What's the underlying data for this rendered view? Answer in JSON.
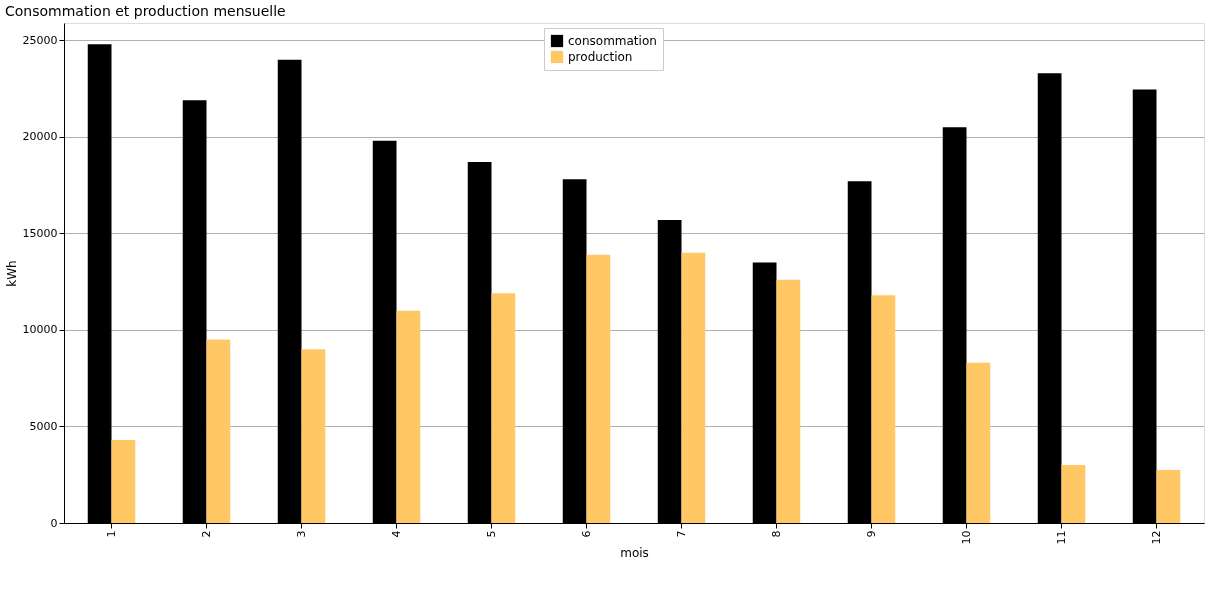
{
  "chart_data": {
    "type": "bar",
    "title": "Consommation et production mensuelle",
    "xlabel": "mois",
    "ylabel": "kWh",
    "categories": [
      "1",
      "2",
      "3",
      "4",
      "5",
      "6",
      "7",
      "8",
      "9",
      "10",
      "11",
      "12"
    ],
    "series": [
      {
        "name": "consommation",
        "color": "#000000",
        "values": [
          24800,
          21900,
          24000,
          19800,
          18700,
          17800,
          15700,
          13500,
          17700,
          20500,
          23300,
          22450
        ]
      },
      {
        "name": "production",
        "color": "#ffc864",
        "values": [
          4300,
          9500,
          9000,
          11000,
          11900,
          13900,
          14000,
          12600,
          11800,
          8300,
          3000,
          2750
        ]
      }
    ],
    "ylim": [
      0,
      25900
    ],
    "yticks": [
      0,
      5000,
      10000,
      15000,
      20000,
      25000
    ],
    "grid": "y",
    "legend": "top"
  }
}
